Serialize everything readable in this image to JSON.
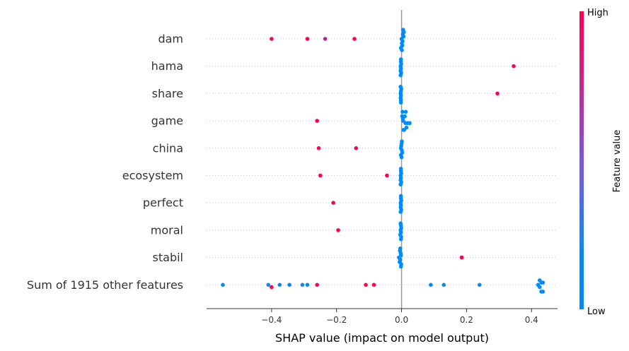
{
  "chart_data": {
    "type": "scatter",
    "subtype": "shap-beeswarm",
    "xlabel": "SHAP value (impact on model output)",
    "xlim": [
      -0.6,
      0.48
    ],
    "xticks": [
      -0.4,
      -0.2,
      0.0,
      0.2,
      0.4
    ],
    "xtick_labels": [
      "−0.4",
      "−0.2",
      "0.0",
      "0.2",
      "0.4"
    ],
    "zero_line": true,
    "colors": {
      "high": "#ff0052",
      "low": "#008bfb",
      "mid": "#7d55e0",
      "grid": "#cccccc",
      "axis": "#333333"
    },
    "colorbar": {
      "label": "Feature value",
      "high_label": "High",
      "low_label": "Low"
    },
    "features": [
      {
        "name": "dam",
        "points": [
          {
            "x": -0.4,
            "v": 1
          },
          {
            "x": -0.29,
            "v": 1
          },
          {
            "x": -0.235,
            "v": 0.6
          },
          {
            "x": -0.145,
            "v": 1
          },
          {
            "x": 0.0,
            "v": 0
          },
          {
            "x": 0.003,
            "v": 0
          },
          {
            "x": 0.006,
            "v": 0
          },
          {
            "x": 0.001,
            "v": 0
          },
          {
            "x": 0.004,
            "v": 0
          },
          {
            "x": 0.002,
            "v": 0
          },
          {
            "x": 0.007,
            "v": 0
          },
          {
            "x": -0.002,
            "v": 0
          },
          {
            "x": 0.005,
            "v": 0
          },
          {
            "x": 0.001,
            "v": 0
          }
        ]
      },
      {
        "name": "hama",
        "points": [
          {
            "x": 0.345,
            "v": 1
          },
          {
            "x": -0.003,
            "v": 0
          },
          {
            "x": -0.002,
            "v": 0
          },
          {
            "x": -0.001,
            "v": 0
          },
          {
            "x": -0.003,
            "v": 0
          },
          {
            "x": -0.002,
            "v": 0
          },
          {
            "x": -0.001,
            "v": 0
          },
          {
            "x": -0.002,
            "v": 0
          },
          {
            "x": -0.003,
            "v": 0
          }
        ]
      },
      {
        "name": "share",
        "points": [
          {
            "x": 0.295,
            "v": 1
          },
          {
            "x": -0.003,
            "v": 0
          },
          {
            "x": -0.002,
            "v": 0
          },
          {
            "x": -0.002,
            "v": 0
          },
          {
            "x": -0.003,
            "v": 0
          },
          {
            "x": -0.001,
            "v": 0
          },
          {
            "x": -0.002,
            "v": 0
          },
          {
            "x": -0.003,
            "v": 0
          },
          {
            "x": -0.002,
            "v": 0
          }
        ]
      },
      {
        "name": "game",
        "points": [
          {
            "x": -0.26,
            "v": 1
          },
          {
            "x": 0.005,
            "v": 0
          },
          {
            "x": 0.012,
            "v": 0
          },
          {
            "x": 0.018,
            "v": 0
          },
          {
            "x": 0.025,
            "v": 0
          },
          {
            "x": 0.004,
            "v": 0
          },
          {
            "x": 0.01,
            "v": 0
          },
          {
            "x": 0.015,
            "v": 0
          },
          {
            "x": 0.002,
            "v": 0
          },
          {
            "x": 0.008,
            "v": 0
          },
          {
            "x": 0.006,
            "v": 0
          },
          {
            "x": 0.013,
            "v": 0
          },
          {
            "x": 0.003,
            "v": 0
          }
        ]
      },
      {
        "name": "china",
        "points": [
          {
            "x": -0.255,
            "v": 1
          },
          {
            "x": -0.14,
            "v": 1
          },
          {
            "x": -0.002,
            "v": 0
          },
          {
            "x": 0.001,
            "v": 0
          },
          {
            "x": -0.001,
            "v": 0
          },
          {
            "x": 0.002,
            "v": 0
          },
          {
            "x": 0.0,
            "v": 0
          },
          {
            "x": -0.002,
            "v": 0
          },
          {
            "x": 0.001,
            "v": 0
          },
          {
            "x": 0.0,
            "v": 0
          }
        ]
      },
      {
        "name": "ecosystem",
        "points": [
          {
            "x": -0.25,
            "v": 1
          },
          {
            "x": -0.045,
            "v": 1
          },
          {
            "x": -0.003,
            "v": 0
          },
          {
            "x": -0.002,
            "v": 0
          },
          {
            "x": -0.001,
            "v": 0
          },
          {
            "x": -0.003,
            "v": 0
          },
          {
            "x": -0.002,
            "v": 0
          },
          {
            "x": -0.001,
            "v": 0
          },
          {
            "x": -0.002,
            "v": 0
          },
          {
            "x": -0.003,
            "v": 0
          }
        ]
      },
      {
        "name": "perfect",
        "points": [
          {
            "x": -0.21,
            "v": 1
          },
          {
            "x": -0.003,
            "v": 0
          },
          {
            "x": -0.002,
            "v": 0
          },
          {
            "x": -0.001,
            "v": 0
          },
          {
            "x": -0.003,
            "v": 0
          },
          {
            "x": -0.002,
            "v": 0
          },
          {
            "x": -0.001,
            "v": 0
          },
          {
            "x": -0.002,
            "v": 0
          },
          {
            "x": -0.003,
            "v": 0
          }
        ]
      },
      {
        "name": "moral",
        "points": [
          {
            "x": -0.195,
            "v": 1
          },
          {
            "x": -0.003,
            "v": 0
          },
          {
            "x": -0.002,
            "v": 0
          },
          {
            "x": -0.001,
            "v": 0
          },
          {
            "x": -0.004,
            "v": 0
          },
          {
            "x": -0.002,
            "v": 0
          },
          {
            "x": -0.001,
            "v": 0
          },
          {
            "x": -0.003,
            "v": 0
          },
          {
            "x": -0.002,
            "v": 0
          }
        ]
      },
      {
        "name": "stabil",
        "points": [
          {
            "x": 0.185,
            "v": 1
          },
          {
            "x": -0.008,
            "v": 0
          },
          {
            "x": -0.004,
            "v": 0
          },
          {
            "x": -0.002,
            "v": 0
          },
          {
            "x": -0.006,
            "v": 0
          },
          {
            "x": -0.003,
            "v": 0
          },
          {
            "x": -0.001,
            "v": 0
          },
          {
            "x": -0.005,
            "v": 0
          },
          {
            "x": -0.002,
            "v": 0
          },
          {
            "x": -0.004,
            "v": 0
          }
        ]
      },
      {
        "name": "Sum of 1915 other features",
        "points": [
          {
            "x": -0.55,
            "v": 0
          },
          {
            "x": -0.41,
            "v": 0
          },
          {
            "x": -0.4,
            "v": 1
          },
          {
            "x": -0.375,
            "v": 0
          },
          {
            "x": -0.345,
            "v": 0
          },
          {
            "x": -0.305,
            "v": 0
          },
          {
            "x": -0.29,
            "v": 0
          },
          {
            "x": -0.26,
            "v": 1
          },
          {
            "x": -0.11,
            "v": 1
          },
          {
            "x": -0.085,
            "v": 1
          },
          {
            "x": 0.09,
            "v": 0
          },
          {
            "x": 0.13,
            "v": 0
          },
          {
            "x": 0.24,
            "v": 0
          },
          {
            "x": 0.42,
            "v": 0
          },
          {
            "x": 0.425,
            "v": 0
          },
          {
            "x": 0.43,
            "v": 0
          },
          {
            "x": 0.435,
            "v": 0
          },
          {
            "x": 0.425,
            "v": 0
          },
          {
            "x": 0.43,
            "v": 0
          },
          {
            "x": 0.435,
            "v": 0
          }
        ]
      }
    ]
  }
}
